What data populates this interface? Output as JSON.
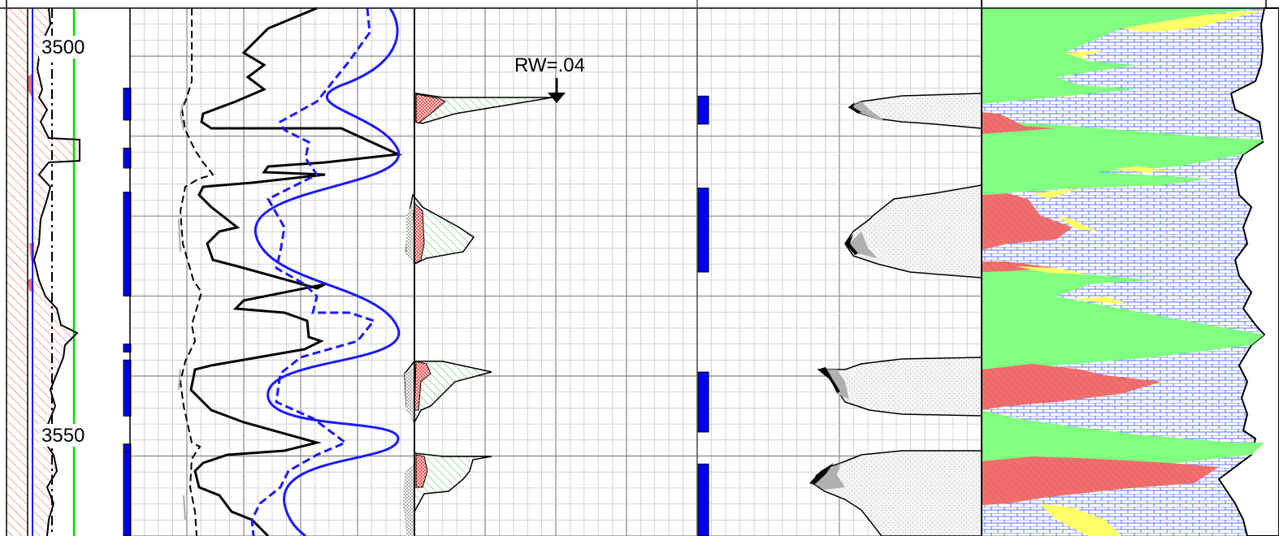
{
  "chart_data": {
    "type": "line",
    "title": "",
    "depth": {
      "ticks": [
        3500,
        3550
      ],
      "ylim": [
        3494,
        3560
      ],
      "labels": [
        "3500",
        "3550"
      ]
    },
    "annotations": [
      {
        "text": "RW=.04",
        "depth": 3506
      }
    ],
    "tracks": [
      {
        "name": "depth-track"
      },
      {
        "name": "flag-track",
        "intervals": [
          [
            3504,
            3508
          ],
          [
            3511.5,
            3514
          ],
          [
            3517,
            3530
          ],
          [
            3536,
            3537
          ],
          [
            3538,
            3545
          ],
          [
            3548.5,
            3549.5
          ],
          [
            3549.5,
            3560
          ]
        ]
      },
      {
        "name": "resistivity-track"
      },
      {
        "name": "porosity-track"
      },
      {
        "name": "pay-flag-track",
        "intervals": [
          [
            3505,
            3508.5
          ],
          [
            3516.5,
            3527
          ],
          [
            3539.5,
            3547
          ],
          [
            3551,
            3560
          ]
        ]
      },
      {
        "name": "volume-track"
      },
      {
        "name": "lithology-track"
      }
    ],
    "colors": {
      "gamma_fill": "#f08080",
      "flag": "#0000ee",
      "curve_blue": "#1a1aff",
      "sand_green": "#80ff80",
      "calcite_red": "#f07070",
      "yellow": "#ffff66",
      "limestone_blue": "#2040ff",
      "cutoff_green": "#00dd00"
    }
  }
}
